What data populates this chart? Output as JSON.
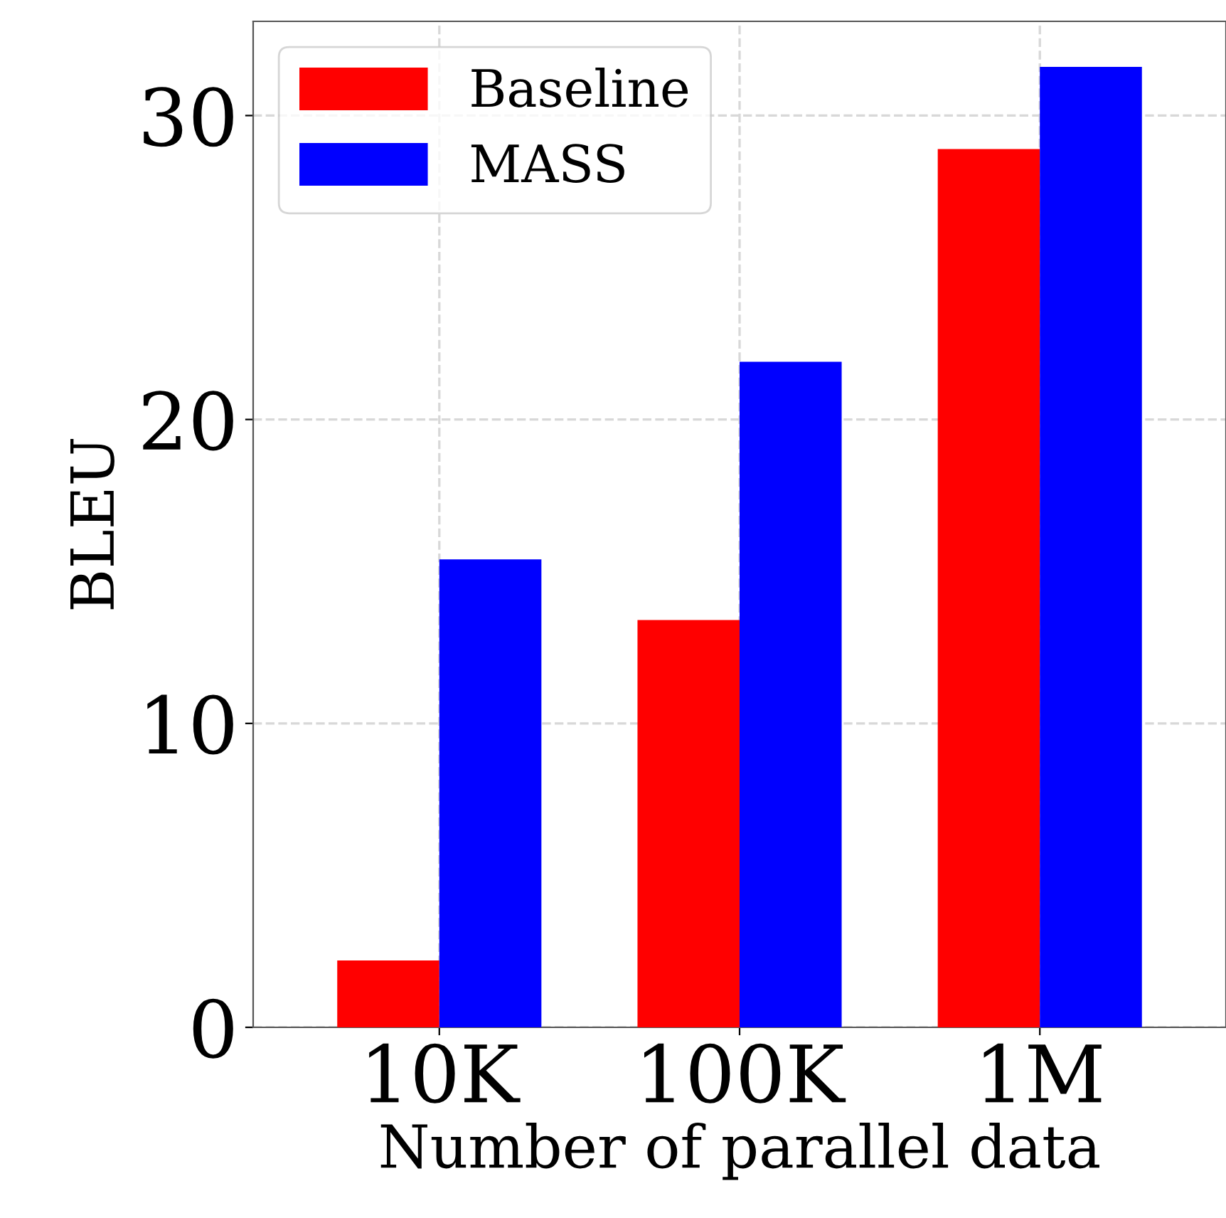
{
  "chart_data": {
    "type": "bar",
    "xlabel": "Number of parallel data",
    "ylabel": "BLEU",
    "categories": [
      "10K",
      "100K",
      "1M"
    ],
    "series": [
      {
        "name": "Baseline",
        "color": "#ff0000",
        "values": [
          2.2,
          13.4,
          28.9
        ]
      },
      {
        "name": "MASS",
        "color": "#0000ff",
        "values": [
          15.4,
          21.9,
          31.6
        ]
      }
    ],
    "ylim": [
      0,
      33.1
    ],
    "yticks": [
      0,
      10,
      20,
      30
    ],
    "grid": true,
    "legend": "top left"
  }
}
